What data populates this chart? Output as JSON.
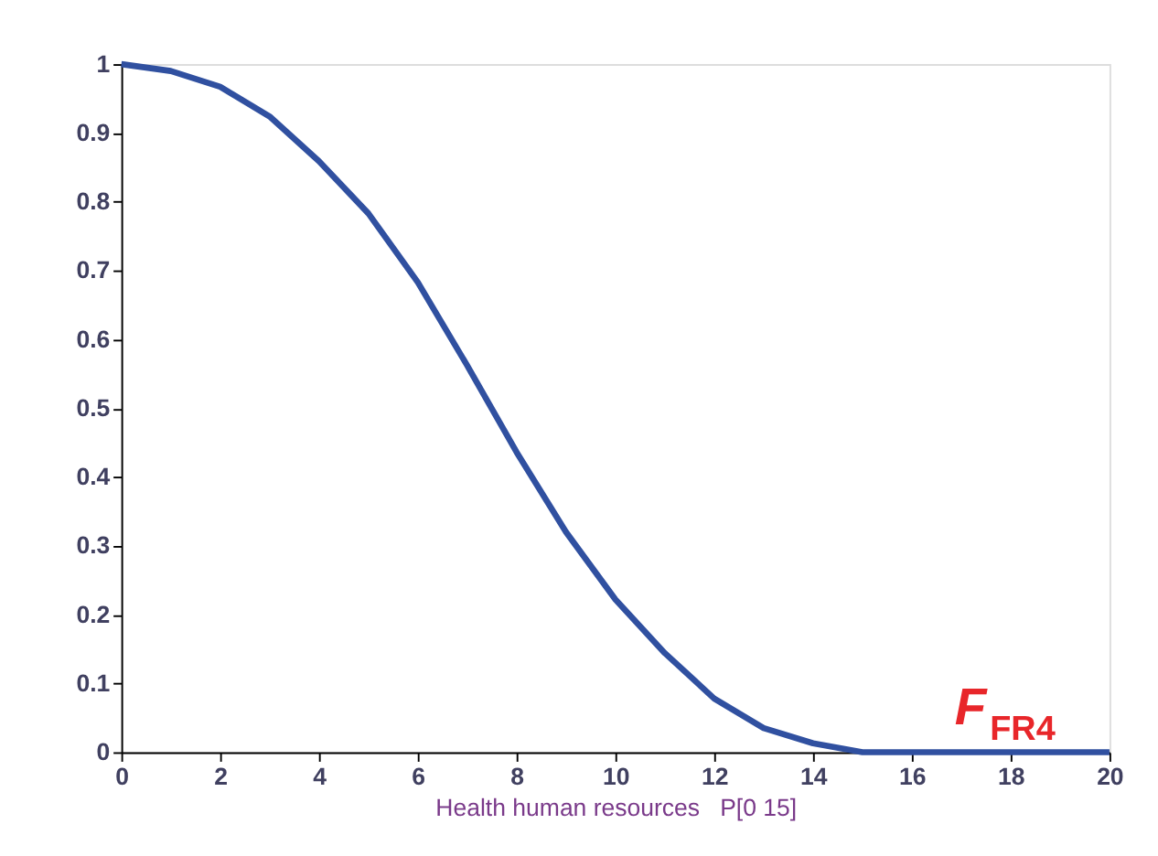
{
  "chart_data": {
    "type": "line",
    "xlabel": "Health human resources   P[0 15]",
    "x": [
      0,
      1,
      2,
      3,
      4,
      5,
      6,
      7,
      8,
      9,
      10,
      11,
      12,
      13,
      14,
      15,
      16,
      17,
      18,
      19,
      20
    ],
    "series": [
      {
        "color": "#3050a0",
        "values": [
          1.0,
          0.99,
          0.967,
          0.924,
          0.859,
          0.783,
          0.683,
          0.562,
          0.436,
          0.32,
          0.222,
          0.144,
          0.078,
          0.035,
          0.013,
          0,
          0,
          0,
          0,
          0,
          0
        ]
      }
    ],
    "xlim": [
      0,
      20
    ],
    "xticks": [
      0,
      2,
      4,
      6,
      8,
      10,
      12,
      14,
      16,
      18,
      20
    ],
    "ylim": [
      0,
      1
    ],
    "yticks": [
      0,
      0.1,
      0.2,
      0.3,
      0.4,
      0.5,
      0.6,
      0.7,
      0.8,
      0.9,
      1
    ],
    "annotations": [
      "F$_{FR4}$"
    ],
    "grid": false,
    "marker": "none",
    "line_style": "solid"
  }
}
